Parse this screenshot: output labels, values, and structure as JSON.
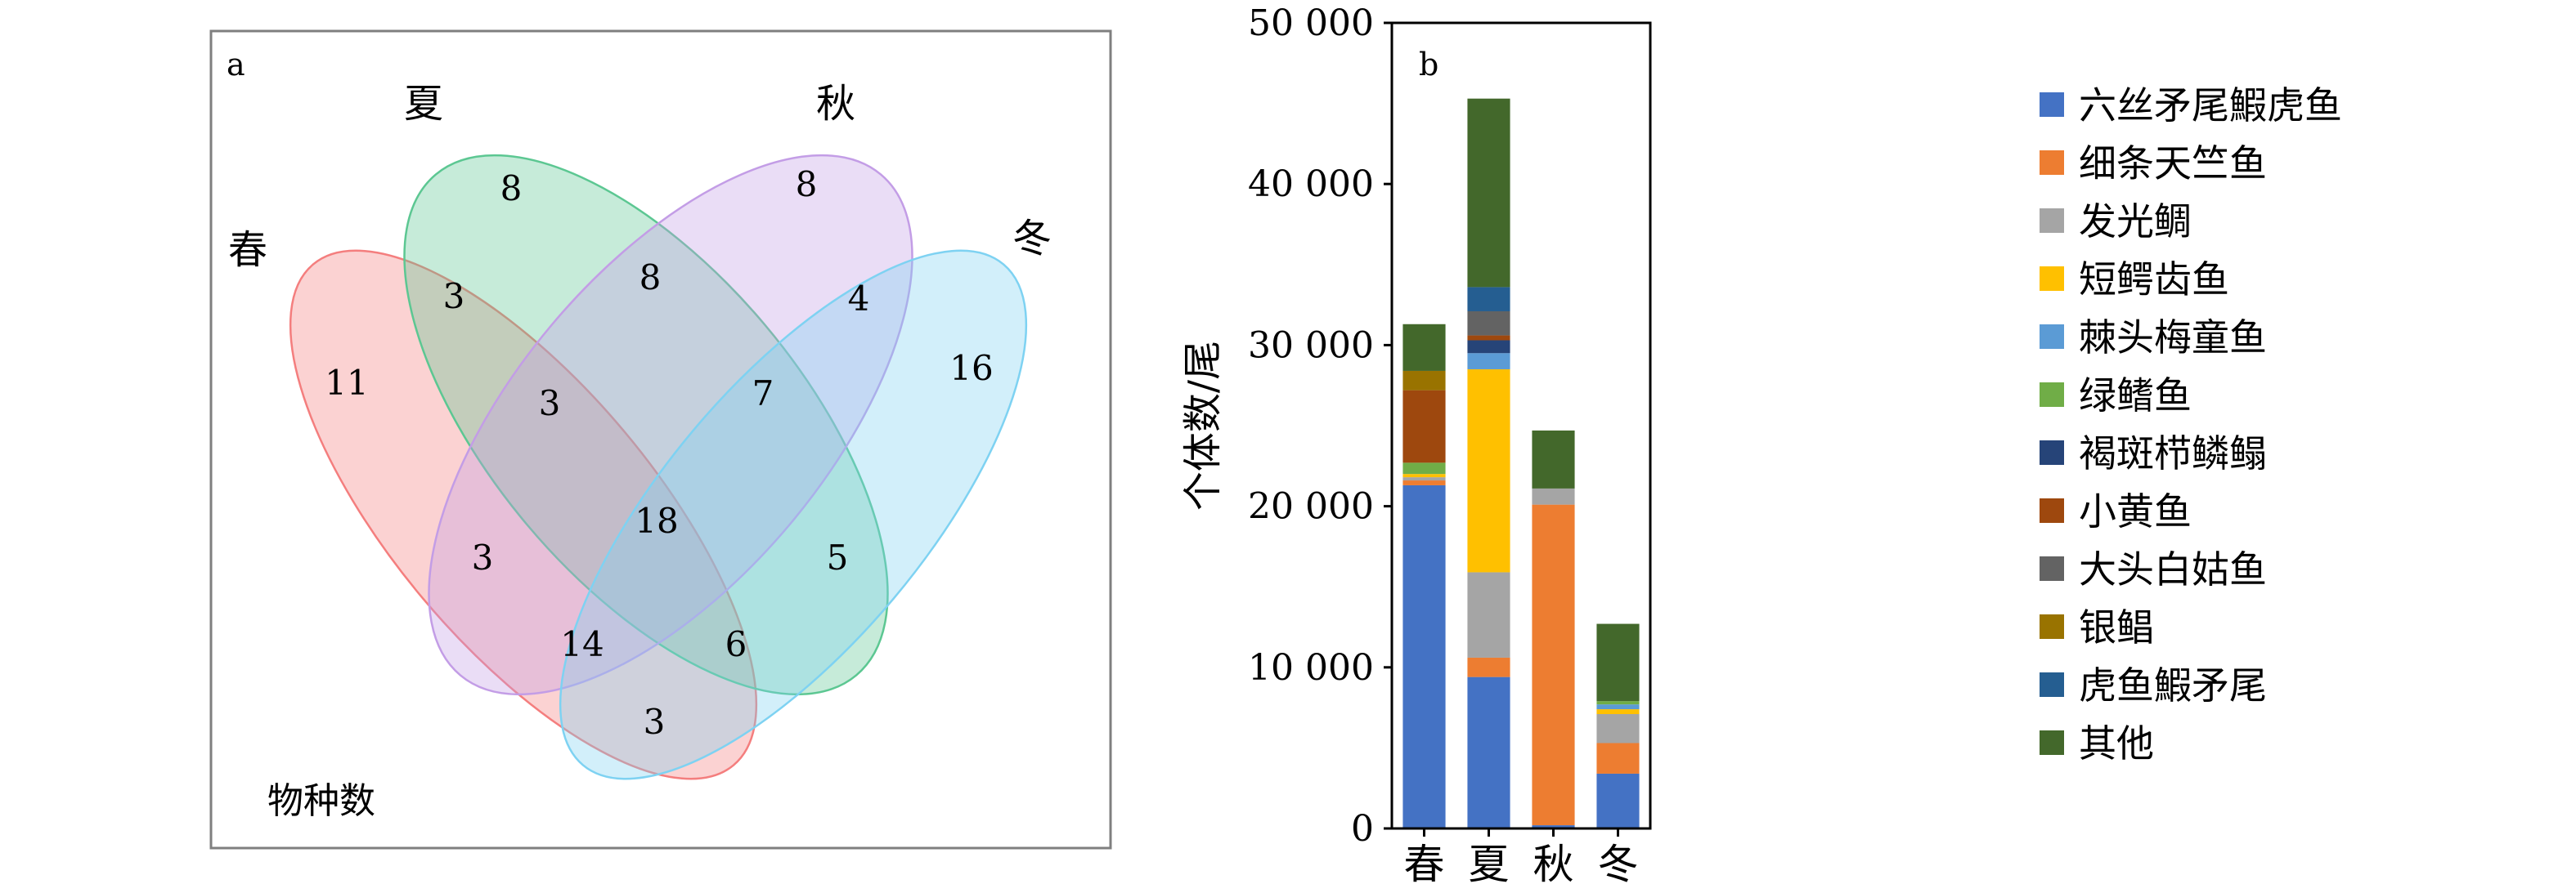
{
  "venn": {
    "panel_label": "a",
    "sets": [
      {
        "name": "春",
        "color": "#f47e7e"
      },
      {
        "name": "夏",
        "color": "#5cc792"
      },
      {
        "name": "秋",
        "color": "#c39de6"
      },
      {
        "name": "冬",
        "color": "#7ed2f2"
      }
    ],
    "region_counts": {
      "spring_only": 11,
      "summer_only": 8,
      "autumn_only": 8,
      "winter_only": 16,
      "spring_summer": 3,
      "summer_autumn": 8,
      "autumn_winter": 4,
      "spring_summer_autumn": 3,
      "summer_autumn_winter": 7,
      "all_four": 18,
      "spring_autumn": 3,
      "summer_winter": 5,
      "spring_autumn_winter": 14,
      "spring_summer_winter": 6,
      "spring_winter": 3
    },
    "caption": "物种数"
  },
  "chart_data": {
    "type": "bar",
    "stacked": true,
    "panel_label": "b",
    "categories": [
      "春",
      "夏",
      "秋",
      "冬"
    ],
    "ylabel": "个体数/尾",
    "ylim": [
      0,
      50000
    ],
    "yticks": [
      0,
      10000,
      20000,
      30000,
      40000,
      50000
    ],
    "ytick_labels": [
      "0",
      "10 000",
      "20 000",
      "30 000",
      "40 000",
      "50 000"
    ],
    "legend_position": "right",
    "series": [
      {
        "name": "六丝矛尾鰕虎鱼",
        "color": "#4472c4",
        "values": [
          21300,
          9400,
          200,
          3400
        ]
      },
      {
        "name": "细条天竺鱼",
        "color": "#ed7d31",
        "values": [
          300,
          1200,
          19900,
          1900
        ]
      },
      {
        "name": "发光鲷",
        "color": "#a5a5a5",
        "values": [
          200,
          5300,
          1000,
          1800
        ]
      },
      {
        "name": "短鳄齿鱼",
        "color": "#ffc000",
        "values": [
          200,
          12600,
          0,
          300
        ]
      },
      {
        "name": "棘头梅童鱼",
        "color": "#5b9bd5",
        "values": [
          0,
          1000,
          0,
          300
        ]
      },
      {
        "name": "绿鳍鱼",
        "color": "#70ad47",
        "values": [
          700,
          0,
          0,
          200
        ]
      },
      {
        "name": "褐斑栉鳞鳎",
        "color": "#264478",
        "values": [
          0,
          800,
          0,
          0
        ]
      },
      {
        "name": "小黄鱼",
        "color": "#9e480e",
        "values": [
          4500,
          300,
          0,
          0
        ]
      },
      {
        "name": "大头白姑鱼",
        "color": "#636363",
        "values": [
          0,
          1500,
          0,
          0
        ]
      },
      {
        "name": "银鲳",
        "color": "#997300",
        "values": [
          1200,
          0,
          0,
          0
        ]
      },
      {
        "name": "虎鱼鰕矛尾",
        "color": "#255e91",
        "values": [
          0,
          1500,
          0,
          0
        ]
      },
      {
        "name": "其他",
        "color": "#43682b",
        "values": [
          2900,
          11700,
          3600,
          4800
        ]
      }
    ]
  }
}
